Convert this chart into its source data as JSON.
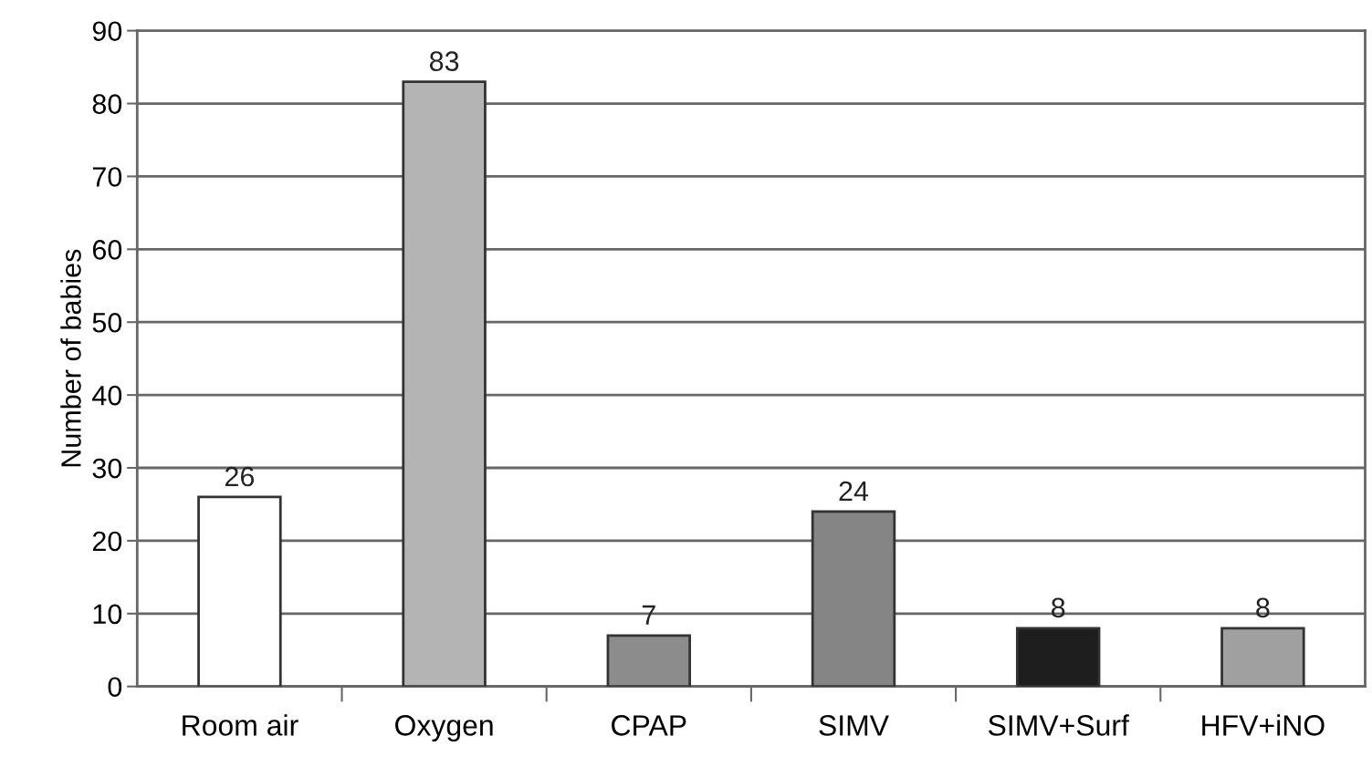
{
  "chart_data": {
    "type": "bar",
    "ylabel": "Number of babies",
    "categories": [
      "Room air",
      "Oxygen",
      "CPAP",
      "SIMV",
      "SIMV+Surf",
      "HFV+iNO"
    ],
    "values": [
      26,
      83,
      7,
      24,
      8,
      8
    ],
    "colors": [
      "#ffffff",
      "#b4b4b4",
      "#8c8c8c",
      "#858585",
      "#1e1e1e",
      "#a0a0a0"
    ],
    "ylim": [
      0,
      90
    ],
    "yticks": [
      0,
      10,
      20,
      30,
      40,
      50,
      60,
      70,
      80,
      90
    ],
    "grid": "y",
    "data_labels": true,
    "legend": false
  }
}
